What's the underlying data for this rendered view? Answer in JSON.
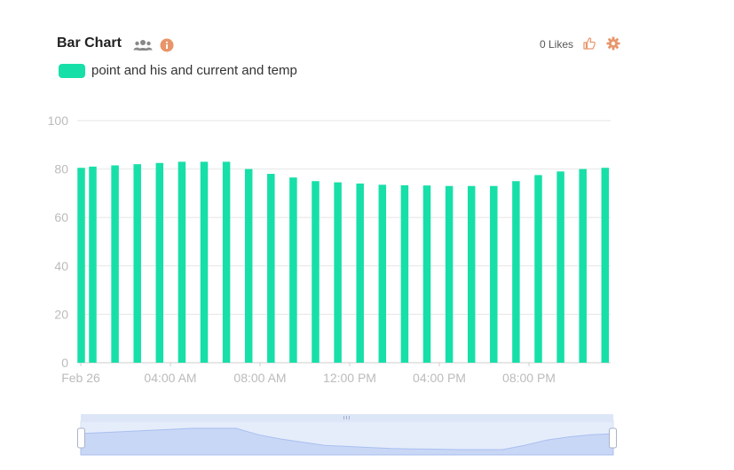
{
  "header": {
    "title": "Bar Chart",
    "likes_label": "0 Likes",
    "icons": [
      "users-icon",
      "info-icon",
      "thumbs-up-icon",
      "gear-icon"
    ]
  },
  "colors": {
    "bar": "#17dfa8",
    "accent": "#e8956a",
    "grid": "#e6e6e6",
    "axis_text": "#bbbbbb",
    "slider_fill": "#d7e3fa"
  },
  "chart_data": {
    "type": "bar",
    "title": "Bar Chart",
    "xlabel": "",
    "ylabel": "",
    "ylim": [
      0,
      100
    ],
    "yticks": [
      0,
      20,
      40,
      60,
      80,
      100
    ],
    "x_tick_labels": [
      "Feb 26",
      "04:00 AM",
      "08:00 AM",
      "12:00 PM",
      "04:00 PM",
      "08:00 PM"
    ],
    "grid": true,
    "legend_position": "top-left",
    "series": [
      {
        "name": "point and his and current and temp",
        "values": [
          80.5,
          81,
          81.5,
          82,
          82.5,
          83,
          83,
          83,
          80,
          78,
          76.5,
          75,
          74.5,
          74,
          73.5,
          73.3,
          73.2,
          73,
          73,
          73,
          75,
          77.5,
          79,
          80,
          80.5
        ]
      }
    ]
  }
}
